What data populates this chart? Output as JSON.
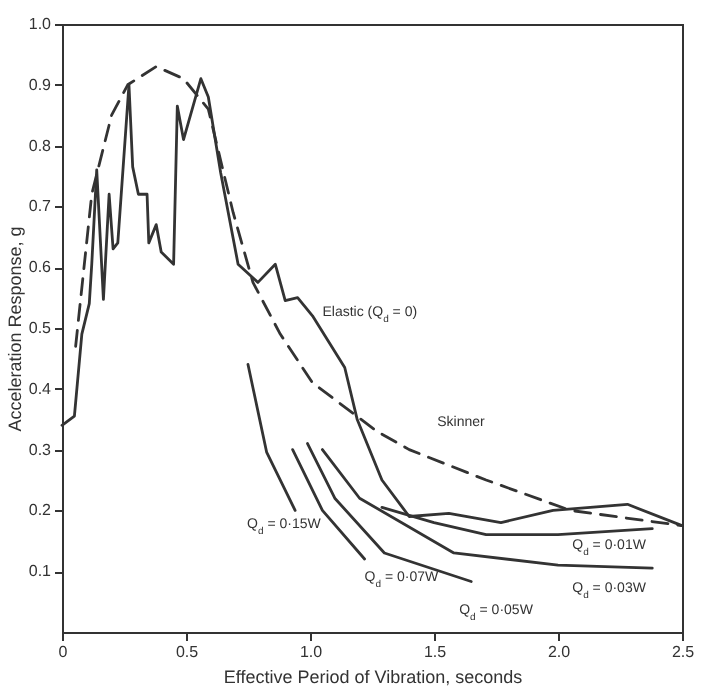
{
  "chart_data": {
    "type": "line",
    "xlabel": "Effective Period of Vibration, seconds",
    "ylabel": "Acceleration Response, g",
    "xlim": [
      0,
      2.5
    ],
    "ylim": [
      0,
      1
    ],
    "xticks": [
      {
        "value": 0,
        "label": "0"
      },
      {
        "value": 0.5,
        "label": "0.5"
      },
      {
        "value": 1,
        "label": "1.0"
      },
      {
        "value": 1.5,
        "label": "1.5"
      },
      {
        "value": 2,
        "label": "2.0"
      },
      {
        "value": 2.5,
        "label": "2.5"
      }
    ],
    "yticks": [
      {
        "value": 0.1,
        "label": "0.1"
      },
      {
        "value": 0.2,
        "label": "0.2"
      },
      {
        "value": 0.3,
        "label": "0.3"
      },
      {
        "value": 0.4,
        "label": "0.4"
      },
      {
        "value": 0.5,
        "label": "0.5"
      },
      {
        "value": 0.6,
        "label": "0.6"
      },
      {
        "value": 0.7,
        "label": "0.7"
      },
      {
        "value": 0.8,
        "label": "0.8"
      },
      {
        "value": 0.9,
        "label": "0.9"
      },
      {
        "value": 1,
        "label": "1.0"
      }
    ],
    "grid": false,
    "marker": "none",
    "series": [
      {
        "name": "Elastic (Q$_{d}$ = 0)",
        "color": "#333333",
        "line_style": "solid",
        "x": [
          0,
          0.05,
          0.08,
          0.11,
          0.12,
          0.14,
          0.167,
          0.19,
          0.206,
          0.225,
          0.27,
          0.285,
          0.308,
          0.343,
          0.35,
          0.38,
          0.4,
          0.45,
          0.465,
          0.49,
          0.56,
          0.59,
          0.64,
          0.71,
          0.79,
          0.86,
          0.9,
          0.95,
          1.01,
          1.14,
          1.19,
          1.29,
          1.4,
          1.56,
          1.77,
          1.98,
          2.28,
          2.5
        ],
        "values": [
          0.34,
          0.355,
          0.49,
          0.54,
          0.605,
          0.76,
          0.547,
          0.72,
          0.63,
          0.64,
          0.9,
          0.765,
          0.72,
          0.72,
          0.64,
          0.67,
          0.625,
          0.605,
          0.865,
          0.81,
          0.91,
          0.88,
          0.755,
          0.605,
          0.575,
          0.605,
          0.545,
          0.55,
          0.52,
          0.435,
          0.35,
          0.25,
          0.19,
          0.195,
          0.18,
          0.2,
          0.21,
          0.175
        ]
      },
      {
        "name": "Skinner",
        "color": "#333333",
        "line_style": "dashed",
        "x": [
          0.055,
          0.12,
          0.2,
          0.265,
          0.38,
          0.49,
          0.59,
          0.69,
          0.77,
          0.88,
          1.01,
          1.27,
          1.4,
          1.71,
          2.05,
          2.5
        ],
        "values": [
          0.47,
          0.72,
          0.85,
          0.9,
          0.93,
          0.91,
          0.86,
          0.69,
          0.575,
          0.49,
          0.41,
          0.33,
          0.3,
          0.25,
          0.2,
          0.175
        ]
      },
      {
        "name": "Q$_{d}$ = 0·15W",
        "color": "#333333",
        "line_style": "solid",
        "x": [
          0.75,
          0.825,
          0.94
        ],
        "values": [
          0.44,
          0.296,
          0.2
        ]
      },
      {
        "name": "Q$_{d}$ = 0·07W",
        "color": "#333333",
        "line_style": "solid",
        "x": [
          0.93,
          1.05,
          1.22
        ],
        "values": [
          0.3,
          0.2,
          0.12
        ]
      },
      {
        "name": "Q$_{d}$ = 0·05W",
        "color": "#333333",
        "line_style": "solid",
        "x": [
          0.99,
          1.1,
          1.3,
          1.65
        ],
        "values": [
          0.31,
          0.22,
          0.13,
          0.083
        ]
      },
      {
        "name": "Q$_{d}$ = 0·03W",
        "color": "#333333",
        "line_style": "solid",
        "x": [
          1.05,
          1.2,
          1.58,
          2.0,
          2.38
        ],
        "values": [
          0.3,
          0.22,
          0.13,
          0.11,
          0.105
        ]
      },
      {
        "name": "Q$_{d}$ = 0·01W",
        "color": "#333333",
        "line_style": "solid",
        "x": [
          1.29,
          1.5,
          1.71,
          2.0,
          2.38
        ],
        "values": [
          0.205,
          0.18,
          0.16,
          0.16,
          0.17
        ]
      }
    ]
  }
}
